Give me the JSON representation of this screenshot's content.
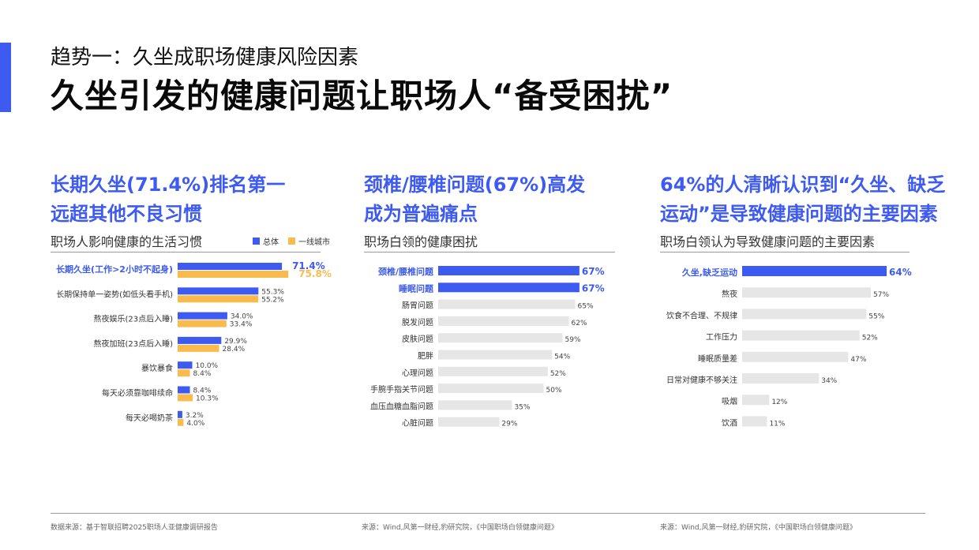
{
  "header": {
    "subtitle": "趋势一：久坐成职场健康风险因素",
    "title": "久坐引发的健康问题让职场人“备受困扰”"
  },
  "colors": {
    "accent": "#3d5af1",
    "secondary": "#f9bc4c",
    "bar_bg": "#e6e6e6"
  },
  "panels": [
    {
      "headline": [
        "长期久坐(71.4%)排名第一",
        "远超其他不良习惯"
      ],
      "chart_title": "职场人影响健康的生活习惯"
    },
    {
      "headline": [
        "颈椎/腰椎问题(67%)高发",
        "成为普遍痛点"
      ],
      "chart_title": "职场白领的健康困扰"
    },
    {
      "headline": [
        "64%的人清晰认识到“久坐、缺乏",
        "运动”是导致健康问题的主要因素"
      ],
      "chart_title": "职场白领认为导致健康问题的主要因素"
    }
  ],
  "chart_data": [
    {
      "type": "bar",
      "orientation": "horizontal",
      "title": "职场人影响健康的生活习惯",
      "legend_position": "top-right",
      "categories": [
        "长期久坐(工作>2小时不起身)",
        "长期保持单一姿势(如低头看手机)",
        "熬夜娱乐(23点后入睡)",
        "熬夜加班(23点后入睡)",
        "暴饮暴食",
        "每天必须靠咖啡续命",
        "每天必喝奶茶"
      ],
      "series": [
        {
          "name": "总体",
          "values": [
            71.4,
            55.3,
            34.0,
            29.9,
            10.0,
            8.4,
            3.2
          ],
          "labels": [
            "71.4%",
            "55.3%",
            "34.0%",
            "29.9%",
            "10.0%",
            "8.4%",
            "3.2%"
          ]
        },
        {
          "name": "一线城市",
          "values": [
            75.8,
            55.2,
            33.4,
            28.4,
            8.4,
            10.3,
            4.0
          ],
          "labels": [
            "75.8%",
            "55.2%",
            "33.4%",
            "28.4%",
            "8.4%",
            "10.3%",
            "4.0%"
          ]
        }
      ],
      "highlight_index": 0
    },
    {
      "type": "bar",
      "orientation": "horizontal",
      "title": "职场白领的健康困扰",
      "categories": [
        "颈椎/腰椎问题",
        "睡眠问题",
        "肠胃问题",
        "脱发问题",
        "皮肤问题",
        "肥胖",
        "心理问题",
        "手腕手指关节问题",
        "血压血糖血脂问题",
        "心脏问题"
      ],
      "values": [
        67,
        67,
        65,
        62,
        59,
        54,
        52,
        50,
        35,
        29
      ],
      "labels": [
        "67%",
        "67%",
        "65%",
        "62%",
        "59%",
        "54%",
        "52%",
        "50%",
        "35%",
        "29%"
      ],
      "highlight_count": 2
    },
    {
      "type": "bar",
      "orientation": "horizontal",
      "title": "职场白领认为导致健康问题的主要因素",
      "categories": [
        "久坐,缺乏运动",
        "熬夜",
        "饮食不合理、不规律",
        "工作压力",
        "睡眠质量差",
        "日常对健康不够关注",
        "吸烟",
        "饮酒"
      ],
      "values": [
        64,
        57,
        55,
        52,
        47,
        34,
        12,
        11
      ],
      "labels": [
        "64%",
        "57%",
        "55%",
        "52%",
        "47%",
        "34%",
        "12%",
        "11%"
      ],
      "highlight_count": 1
    }
  ],
  "footer": {
    "sources": [
      "数据来源：基于智联招聘2025职场人亚健康调研报告",
      "来源：Wind,风第一财经,豹研究院，《中国职场白领健康问题》",
      "来源：Wind,风第一财经,豹研究院，《中国职场白领健康问题》"
    ]
  }
}
